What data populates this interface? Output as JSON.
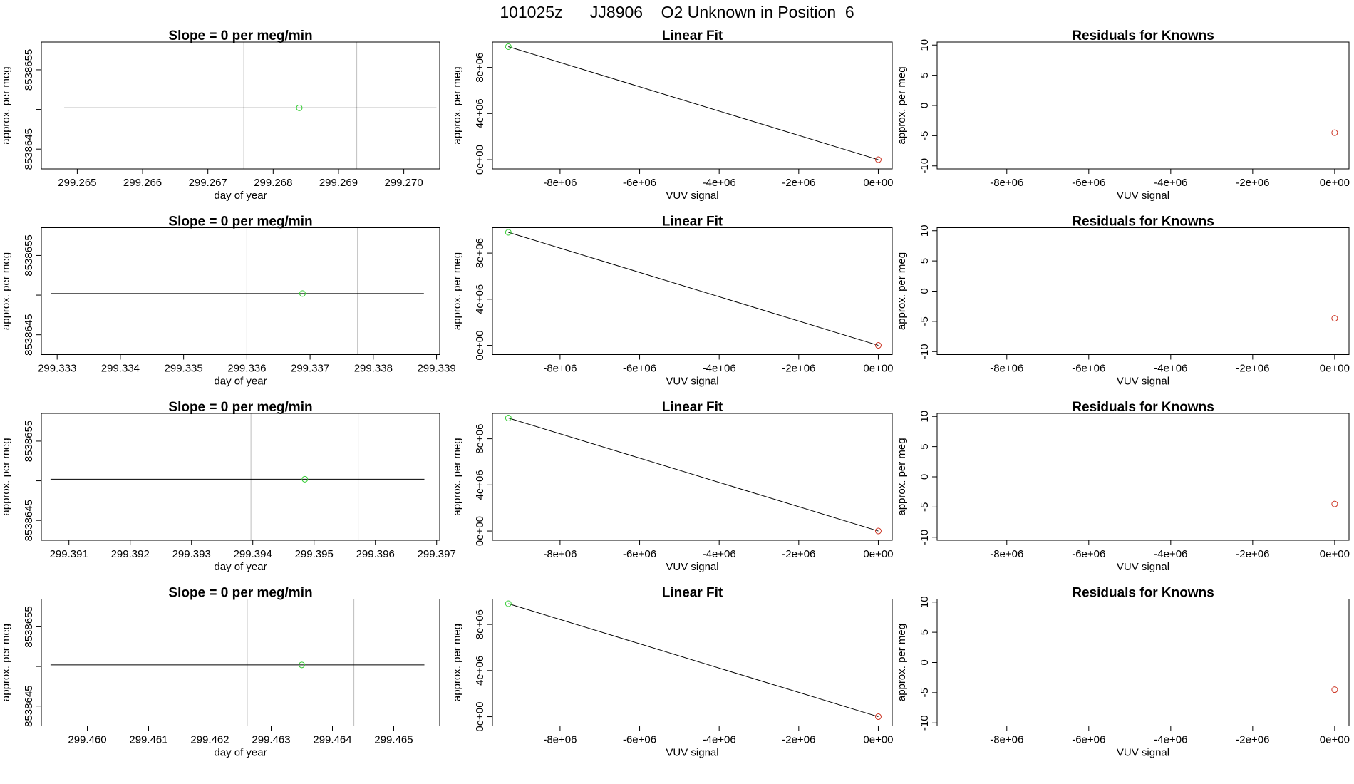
{
  "figure": {
    "title_date": "101025z",
    "title_tank": "JJ8906",
    "title_desc": "O2 Unknown in Position",
    "title_pos": "6"
  },
  "colors": {
    "axis": "#000000",
    "fit_line": "#000000",
    "vline": "#bebebe",
    "unknown_point": "#33cc33",
    "known_point": "#cc3322",
    "residual_point": "#cc3322"
  },
  "chart_data": [
    {
      "type": "line",
      "panel": "slope",
      "title": "Slope =  0  per meg/min",
      "xlabel": "day of year",
      "ylabel": "approx. per meg",
      "xlim": [
        299.26445,
        299.27055
      ],
      "ylim": [
        8538642.5,
        8538658.5
      ],
      "xticks": [
        "299.265",
        "299.266",
        "299.267",
        "299.268",
        "299.269",
        "299.270"
      ],
      "yticks": [
        "8538645",
        "8538655"
      ],
      "line": {
        "x": [
          299.2648,
          299.2705
        ],
        "y": [
          8538650.2,
          8538650.2
        ]
      },
      "point": {
        "x": 299.2684,
        "y": 8538650.2
      },
      "vlines": [
        299.26755,
        299.26928
      ]
    },
    {
      "type": "line",
      "panel": "fit",
      "title": "Linear Fit",
      "xlabel": "VUV signal",
      "ylabel": "approx. per meg",
      "xlim": [
        -9700000,
        350000
      ],
      "ylim": [
        -800000,
        10200000
      ],
      "xticks": [
        "-8e+06",
        "-6e+06",
        "-4e+06",
        "-2e+06",
        "0e+00"
      ],
      "yticks": [
        "0e+00",
        "4e+06",
        "8e+06"
      ],
      "line": {
        "x": [
          -9300000,
          0
        ],
        "y": [
          9800000,
          0
        ]
      },
      "unknown_point": {
        "x": -9300000,
        "y": 9800000
      },
      "known_point": {
        "x": 0,
        "y": 0
      }
    },
    {
      "type": "scatter",
      "panel": "residuals",
      "title": "Residuals for Knowns",
      "xlabel": "VUV signal",
      "ylabel": "approx. per meg",
      "xlim": [
        -9700000,
        350000
      ],
      "ylim": [
        -10.5,
        10.5
      ],
      "xticks": [
        "-8e+06",
        "-6e+06",
        "-4e+06",
        "-2e+06",
        "0e+00"
      ],
      "yticks": [
        "-10",
        "-5",
        "0",
        "5",
        "10"
      ],
      "point": {
        "x": 0,
        "y": -4.5
      }
    },
    {
      "type": "line",
      "panel": "slope",
      "title": "Slope =  0  per meg/min",
      "xlabel": "day of year",
      "ylabel": "approx. per meg",
      "xlim": [
        299.33275,
        299.33905
      ],
      "ylim": [
        8538642.5,
        8538658.5
      ],
      "xticks": [
        "299.333",
        "299.334",
        "299.335",
        "299.336",
        "299.337",
        "299.338",
        "299.339"
      ],
      "yticks": [
        "8538645",
        "8538655"
      ],
      "line": {
        "x": [
          299.3329,
          299.3388
        ],
        "y": [
          8538650.2,
          8538650.2
        ]
      },
      "point": {
        "x": 299.33688,
        "y": 8538650.2
      },
      "vlines": [
        299.336,
        299.33775
      ]
    },
    {
      "type": "line",
      "panel": "fit",
      "title": "Linear Fit",
      "xlabel": "VUV signal",
      "ylabel": "approx. per meg",
      "xlim": [
        -9700000,
        350000
      ],
      "ylim": [
        -800000,
        10200000
      ],
      "xticks": [
        "-8e+06",
        "-6e+06",
        "-4e+06",
        "-2e+06",
        "0e+00"
      ],
      "yticks": [
        "0e+00",
        "4e+06",
        "8e+06"
      ],
      "line": {
        "x": [
          -9300000,
          0
        ],
        "y": [
          9800000,
          0
        ]
      },
      "unknown_point": {
        "x": -9300000,
        "y": 9800000
      },
      "known_point": {
        "x": 0,
        "y": 0
      }
    },
    {
      "type": "scatter",
      "panel": "residuals",
      "title": "Residuals for Knowns",
      "xlabel": "VUV signal",
      "ylabel": "approx. per meg",
      "xlim": [
        -9700000,
        350000
      ],
      "ylim": [
        -10.5,
        10.5
      ],
      "xticks": [
        "-8e+06",
        "-6e+06",
        "-4e+06",
        "-2e+06",
        "0e+00"
      ],
      "yticks": [
        "-10",
        "-5",
        "0",
        "5",
        "10"
      ],
      "point": {
        "x": 0,
        "y": -4.5
      }
    },
    {
      "type": "line",
      "panel": "slope",
      "title": "Slope =  0  per meg/min",
      "xlabel": "day of year",
      "ylabel": "approx. per meg",
      "xlim": [
        299.39055,
        299.39705
      ],
      "ylim": [
        8538642.5,
        8538658.5
      ],
      "xticks": [
        "299.391",
        "299.392",
        "299.393",
        "299.394",
        "299.395",
        "299.396",
        "299.397"
      ],
      "yticks": [
        "8538645",
        "8538655"
      ],
      "line": {
        "x": [
          299.3907,
          299.3968
        ],
        "y": [
          8538650.2,
          8538650.2
        ]
      },
      "point": {
        "x": 299.39485,
        "y": 8538650.2
      },
      "vlines": [
        299.39397,
        299.39572
      ]
    },
    {
      "type": "line",
      "panel": "fit",
      "title": "Linear Fit",
      "xlabel": "VUV signal",
      "ylabel": "approx. per meg",
      "xlim": [
        -9700000,
        350000
      ],
      "ylim": [
        -800000,
        10200000
      ],
      "xticks": [
        "-8e+06",
        "-6e+06",
        "-4e+06",
        "-2e+06",
        "0e+00"
      ],
      "yticks": [
        "0e+00",
        "4e+06",
        "8e+06"
      ],
      "line": {
        "x": [
          -9300000,
          0
        ],
        "y": [
          9800000,
          0
        ]
      },
      "unknown_point": {
        "x": -9300000,
        "y": 9800000
      },
      "known_point": {
        "x": 0,
        "y": 0
      }
    },
    {
      "type": "scatter",
      "panel": "residuals",
      "title": "Residuals for Knowns",
      "xlabel": "VUV signal",
      "ylabel": "approx. per meg",
      "xlim": [
        -9700000,
        350000
      ],
      "ylim": [
        -10.5,
        10.5
      ],
      "xticks": [
        "-8e+06",
        "-6e+06",
        "-4e+06",
        "-2e+06",
        "0e+00"
      ],
      "yticks": [
        "-10",
        "-5",
        "0",
        "5",
        "10"
      ],
      "point": {
        "x": 0,
        "y": -4.5
      }
    },
    {
      "type": "line",
      "panel": "slope",
      "title": "Slope =  0  per meg/min",
      "xlabel": "day of year",
      "ylabel": "approx. per meg",
      "xlim": [
        299.45925,
        299.46575
      ],
      "ylim": [
        8538642.5,
        8538658.5
      ],
      "xticks": [
        "299.460",
        "299.461",
        "299.462",
        "299.463",
        "299.464",
        "299.465"
      ],
      "yticks": [
        "8538645",
        "8538655"
      ],
      "line": {
        "x": [
          299.4594,
          299.4655
        ],
        "y": [
          8538650.2,
          8538650.2
        ]
      },
      "point": {
        "x": 299.4635,
        "y": 8538650.2
      },
      "vlines": [
        299.46261,
        299.46435
      ]
    },
    {
      "type": "line",
      "panel": "fit",
      "title": "Linear Fit",
      "xlabel": "VUV signal",
      "ylabel": "approx. per meg",
      "xlim": [
        -9700000,
        350000
      ],
      "ylim": [
        -800000,
        10200000
      ],
      "xticks": [
        "-8e+06",
        "-6e+06",
        "-4e+06",
        "-2e+06",
        "0e+00"
      ],
      "yticks": [
        "0e+00",
        "4e+06",
        "8e+06"
      ],
      "line": {
        "x": [
          -9300000,
          0
        ],
        "y": [
          9800000,
          0
        ]
      },
      "unknown_point": {
        "x": -9300000,
        "y": 9800000
      },
      "known_point": {
        "x": 0,
        "y": 0
      }
    },
    {
      "type": "scatter",
      "panel": "residuals",
      "title": "Residuals for Knowns",
      "xlabel": "VUV signal",
      "ylabel": "approx. per meg",
      "xlim": [
        -9700000,
        350000
      ],
      "ylim": [
        -10.5,
        10.5
      ],
      "xticks": [
        "-8e+06",
        "-6e+06",
        "-4e+06",
        "-2e+06",
        "0e+00"
      ],
      "yticks": [
        "-10",
        "-5",
        "0",
        "5",
        "10"
      ],
      "point": {
        "x": 0,
        "y": -4.5
      }
    }
  ]
}
